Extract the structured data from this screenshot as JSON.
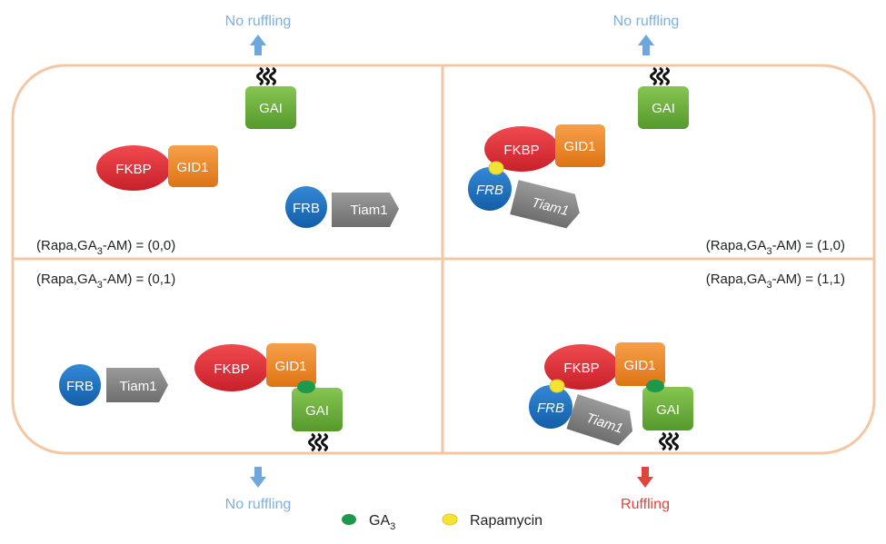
{
  "arrows": {
    "top_left": "No ruffling",
    "top_right": "No ruffling",
    "bottom_left": "No ruffling",
    "bottom_right": "Ruffling"
  },
  "proteins": {
    "fkbp": "FKBP",
    "gid1": "GID1",
    "frb": "FRB",
    "tiam1": "Tiam1",
    "gai": "GAI"
  },
  "states": {
    "q1": {
      "prefix": "(Rapa,GA",
      "sub": "3",
      "suffix": "-AM) = (0,0)"
    },
    "q2": {
      "prefix": "(Rapa,GA",
      "sub": "3",
      "suffix": "-AM) = (1,0)"
    },
    "q3": {
      "prefix": "(Rapa,GA",
      "sub": "3",
      "suffix": "-AM) = (0,1)"
    },
    "q4": {
      "prefix": "(Rapa,GA",
      "sub": "3",
      "suffix": "-AM) = (1,1)"
    }
  },
  "legend": {
    "ga3_prefix": "GA",
    "ga3_sub": "3",
    "rapamycin": "Rapamycin"
  },
  "colors": {
    "cell_border": "#f4c7a4",
    "fkbp": "#e8323a",
    "gid1": "#f08b2c",
    "frb": "#1e73c0",
    "tiam1": "#7f7f7f",
    "gai": "#6db33f",
    "ga3": "#1a9a4a",
    "rapamycin": "#f4e234",
    "arrow_blue": "#6ea7de",
    "arrow_red": "#e0443c"
  }
}
